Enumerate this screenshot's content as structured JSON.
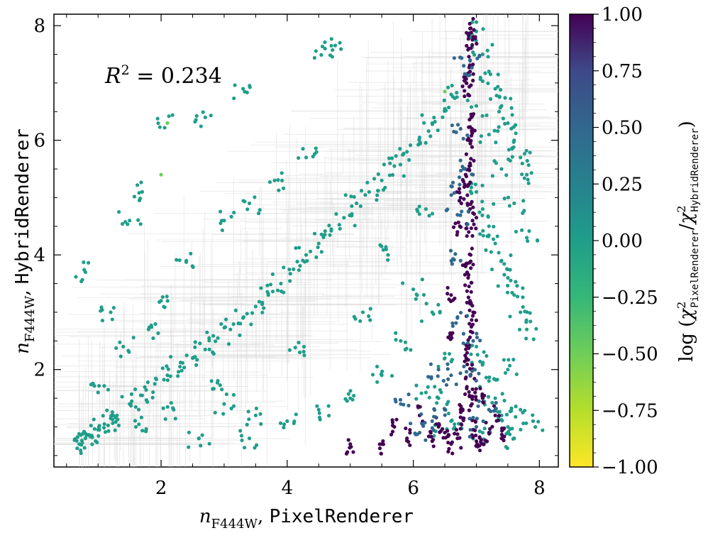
{
  "chart_data": {
    "type": "scatter",
    "title": "",
    "xlabel": {
      "math": "n",
      "sub": "F444W",
      "sep": ", ",
      "mono": "PixelRenderer"
    },
    "ylabel": {
      "math": "n",
      "sub": "F444W",
      "sep": ", ",
      "mono": "HybridRenderer"
    },
    "xlim": [
      0.3,
      8.3
    ],
    "ylim": [
      0.3,
      8.2
    ],
    "x_ticks": [
      "2",
      "4",
      "6",
      "8"
    ],
    "y_ticks": [
      "2",
      "4",
      "6",
      "8"
    ],
    "grid": false,
    "annotation": {
      "lhs": "R",
      "sup": "2",
      "rhs": " = 0.234"
    },
    "colorbar": {
      "colormap": "viridis",
      "range": [
        -1.0,
        1.0
      ],
      "tick_labels": [
        "1.00",
        "0.75",
        "0.50",
        "0.25",
        "0.00",
        "−0.25",
        "−0.50",
        "−0.75",
        "−1.00"
      ],
      "label": {
        "prefix": "log ",
        "chi": "χ",
        "num_sub": "PixelRenderer",
        "den_sub": "HybridRenderer",
        "sup": "2"
      }
    },
    "colors": {
      "teal": "#21918c",
      "dark_purple": "#440154",
      "blue_purple": "#3b528b",
      "green": "#5ec962",
      "errorbar_gray": "#d9d9d9"
    },
    "series": [
      {
        "values_description_note": null,
        "points": [
          [
            0.7,
            0.7
          ],
          [
            0.75,
            0.72
          ],
          [
            0.8,
            0.8
          ],
          [
            0.9,
            0.85
          ],
          [
            1.0,
            0.95
          ],
          [
            1.1,
            1.05
          ],
          [
            1.2,
            1.15
          ],
          [
            1.3,
            1.2
          ],
          [
            1.5,
            1.4
          ],
          [
            1.7,
            1.55
          ],
          [
            1.9,
            1.75
          ],
          [
            2.1,
            1.9
          ],
          [
            2.3,
            2.05
          ],
          [
            2.5,
            2.2
          ],
          [
            2.7,
            2.35
          ],
          [
            2.9,
            2.55
          ],
          [
            3.1,
            2.7
          ],
          [
            3.3,
            2.9
          ],
          [
            3.5,
            3.1
          ],
          [
            3.7,
            3.3
          ],
          [
            3.9,
            3.5
          ],
          [
            4.1,
            3.75
          ],
          [
            4.3,
            4.0
          ],
          [
            4.5,
            4.2
          ],
          [
            4.7,
            4.45
          ],
          [
            4.9,
            4.65
          ],
          [
            5.1,
            4.9
          ],
          [
            5.3,
            5.1
          ],
          [
            5.5,
            5.3
          ],
          [
            5.7,
            5.55
          ],
          [
            5.9,
            5.8
          ],
          [
            6.1,
            6.05
          ],
          [
            6.3,
            6.3
          ],
          [
            6.5,
            6.55
          ],
          [
            6.6,
            6.8
          ],
          [
            0.8,
            3.7
          ],
          [
            1.7,
            5.1
          ],
          [
            2.1,
            6.3
          ],
          [
            2.7,
            6.4
          ],
          [
            1.5,
            4.6
          ],
          [
            1.2,
            3.0
          ],
          [
            1.8,
            2.7
          ],
          [
            2.0,
            3.2
          ],
          [
            2.4,
            3.9
          ],
          [
            3.0,
            4.6
          ],
          [
            3.4,
            4.9
          ],
          [
            3.8,
            5.3
          ],
          [
            4.3,
            5.7
          ],
          [
            4.6,
            7.6
          ],
          [
            4.7,
            7.65
          ],
          [
            3.3,
            6.9
          ],
          [
            2.8,
            1.8
          ],
          [
            3.0,
            1.4
          ],
          [
            3.5,
            1.2
          ],
          [
            4.0,
            1.1
          ],
          [
            4.5,
            1.3
          ],
          [
            5.0,
            1.5
          ],
          [
            5.5,
            1.9
          ],
          [
            5.8,
            2.5
          ],
          [
            6.0,
            3.4
          ],
          [
            5.2,
            3.0
          ],
          [
            5.6,
            4.0
          ],
          [
            6.2,
            4.8
          ],
          [
            4.2,
            2.3
          ],
          [
            2.2,
            1.3
          ],
          [
            1.6,
            1.0
          ],
          [
            2.6,
            0.8
          ],
          [
            3.4,
            0.8
          ],
          [
            1.0,
            1.6
          ],
          [
            1.4,
            2.4
          ],
          [
            7.0,
            7.9
          ],
          [
            7.1,
            7.5
          ],
          [
            7.2,
            7.2
          ],
          [
            7.3,
            6.9
          ],
          [
            7.4,
            6.6
          ],
          [
            7.5,
            6.3
          ],
          [
            7.6,
            6.0
          ],
          [
            7.7,
            5.7
          ],
          [
            7.8,
            5.4
          ],
          [
            7.0,
            5.1
          ],
          [
            7.1,
            4.8
          ],
          [
            7.2,
            4.5
          ],
          [
            7.3,
            4.2
          ],
          [
            7.4,
            3.9
          ],
          [
            7.5,
            3.6
          ],
          [
            7.6,
            3.3
          ],
          [
            7.7,
            3.0
          ],
          [
            7.8,
            2.7
          ],
          [
            7.0,
            2.4
          ],
          [
            7.1,
            2.1
          ],
          [
            7.2,
            1.8
          ],
          [
            7.3,
            1.5
          ],
          [
            7.4,
            1.2
          ],
          [
            7.5,
            1.0
          ],
          [
            7.6,
            0.8
          ],
          [
            7.9,
            1.1
          ],
          [
            7.0,
            6.6
          ],
          [
            7.2,
            6.1
          ],
          [
            7.4,
            5.5
          ],
          [
            7.6,
            4.9
          ],
          [
            7.8,
            4.3
          ],
          [
            7.5,
            2.0
          ],
          [
            7.7,
            1.3
          ],
          [
            7.1,
            0.9
          ],
          [
            6.4,
            1.5
          ],
          [
            6.5,
            2.2
          ],
          [
            6.3,
            3.0
          ],
          [
            6.5,
            0.9
          ],
          [
            6.6,
            1.1
          ],
          [
            6.2,
            1.6
          ]
        ],
        "color_value": 0.0
      },
      {
        "points": [
          [
            6.9,
            7.95
          ],
          [
            6.88,
            7.6
          ],
          [
            6.9,
            7.2
          ],
          [
            6.87,
            6.8
          ],
          [
            6.92,
            6.4
          ],
          [
            6.88,
            6.0
          ],
          [
            6.9,
            5.6
          ],
          [
            6.86,
            5.2
          ],
          [
            6.9,
            4.8
          ],
          [
            6.88,
            4.4
          ],
          [
            6.91,
            4.0
          ],
          [
            6.87,
            3.6
          ],
          [
            6.9,
            3.2
          ],
          [
            6.89,
            2.8
          ],
          [
            6.86,
            2.4
          ],
          [
            6.92,
            2.0
          ],
          [
            6.85,
            1.7
          ],
          [
            6.93,
            1.4
          ],
          [
            6.8,
            1.15
          ],
          [
            6.95,
            0.95
          ],
          [
            6.7,
            0.8
          ],
          [
            7.0,
            0.75
          ],
          [
            6.6,
            0.7
          ],
          [
            7.1,
            0.7
          ],
          [
            6.75,
            1.3
          ],
          [
            6.98,
            1.6
          ],
          [
            6.84,
            2.2
          ],
          [
            6.95,
            3.0
          ],
          [
            6.83,
            3.8
          ],
          [
            6.94,
            4.6
          ],
          [
            6.83,
            5.4
          ],
          [
            6.93,
            6.2
          ],
          [
            6.84,
            7.0
          ],
          [
            6.95,
            7.8
          ],
          [
            6.5,
            0.9
          ],
          [
            6.4,
            1.0
          ],
          [
            5.9,
            0.8
          ],
          [
            5.5,
            0.7
          ],
          [
            5.0,
            0.7
          ],
          [
            6.6,
            2.6
          ],
          [
            6.6,
            3.3
          ],
          [
            6.7,
            4.4
          ],
          [
            6.75,
            5.0
          ],
          [
            7.2,
            0.9
          ],
          [
            7.3,
            1.2
          ],
          [
            7.1,
            1.5
          ],
          [
            7.4,
            0.8
          ],
          [
            6.1,
            1.2
          ],
          [
            5.7,
            1.0
          ],
          [
            6.3,
            0.75
          ]
        ],
        "color_value": 1.0
      },
      {
        "points": [
          [
            6.8,
            7.3
          ],
          [
            6.75,
            6.2
          ],
          [
            6.8,
            5.5
          ],
          [
            6.7,
            4.7
          ],
          [
            6.75,
            3.9
          ],
          [
            6.7,
            2.9
          ],
          [
            6.6,
            1.9
          ],
          [
            6.5,
            1.3
          ],
          [
            6.3,
            1.1
          ],
          [
            6.1,
            0.9
          ],
          [
            5.8,
            1.4
          ],
          [
            6.4,
            2.0
          ],
          [
            7.0,
            1.0
          ],
          [
            7.2,
            1.3
          ],
          [
            6.9,
            1.9
          ],
          [
            6.95,
            2.5
          ],
          [
            6.6,
            5.2
          ],
          [
            6.9,
            7.4
          ]
        ],
        "color_value": 0.45
      },
      {
        "points": [
          [
            2.1,
            6.3
          ],
          [
            2.0,
            5.4
          ],
          [
            6.5,
            6.85
          ]
        ],
        "color_value": -0.45
      }
    ]
  }
}
